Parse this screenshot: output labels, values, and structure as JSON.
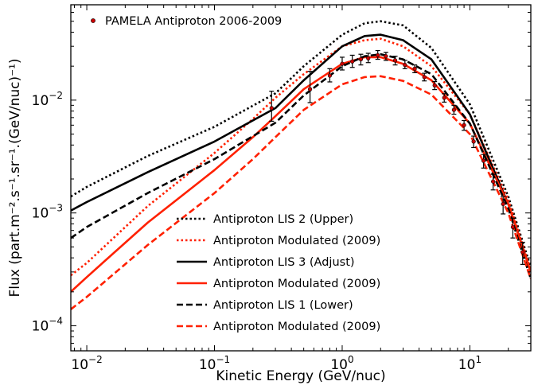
{
  "chart_data": {
    "type": "line",
    "xscale": "log",
    "yscale": "log",
    "xlabel": "Kinetic Energy (GeV/nuc)",
    "ylabel": "Flux (part.m⁻².s⁻¹.sr⁻¹.(GeV/nuc)⁻¹)",
    "xlim": [
      0.0075,
      30
    ],
    "ylim": [
      6e-05,
      0.07
    ],
    "x_ticks": [
      {
        "value": 0.01,
        "base": "10",
        "exp": "-2"
      },
      {
        "value": 0.1,
        "base": "10",
        "exp": "-1"
      },
      {
        "value": 1,
        "base": "10",
        "exp": "0"
      },
      {
        "value": 10,
        "base": "10",
        "exp": "1"
      }
    ],
    "y_ticks": [
      {
        "value": 0.0001,
        "base": "10",
        "exp": "-4"
      },
      {
        "value": 0.001,
        "base": "10",
        "exp": "-3"
      },
      {
        "value": 0.01,
        "base": "10",
        "exp": "-2"
      }
    ],
    "legend_position": "lower-center",
    "series": [
      {
        "name": "Antiproton LIS 2 (Upper)",
        "color": "#000000",
        "style": "dotted",
        "points": [
          [
            0.0075,
            0.0014
          ],
          [
            0.01,
            0.0017
          ],
          [
            0.03,
            0.0032
          ],
          [
            0.1,
            0.0058
          ],
          [
            0.3,
            0.0115
          ],
          [
            0.5,
            0.02
          ],
          [
            1,
            0.038
          ],
          [
            1.5,
            0.048
          ],
          [
            2,
            0.05
          ],
          [
            3,
            0.046
          ],
          [
            5,
            0.029
          ],
          [
            10,
            0.0092
          ],
          [
            20,
            0.0014
          ],
          [
            30,
            0.00033
          ]
        ]
      },
      {
        "name": "Antiproton Modulated (2009)",
        "color": "#ff2000",
        "style": "dotted",
        "points": [
          [
            0.0075,
            0.00028
          ],
          [
            0.01,
            0.00036
          ],
          [
            0.03,
            0.00115
          ],
          [
            0.1,
            0.0034
          ],
          [
            0.2,
            0.0068
          ],
          [
            0.3,
            0.0105
          ],
          [
            0.5,
            0.017
          ],
          [
            1,
            0.03
          ],
          [
            1.5,
            0.034
          ],
          [
            2,
            0.035
          ],
          [
            3,
            0.03
          ],
          [
            5,
            0.02
          ],
          [
            10,
            0.0075
          ],
          [
            20,
            0.0013
          ],
          [
            30,
            0.00031
          ]
        ]
      },
      {
        "name": "Antiproton LIS 3 (Adjust)",
        "color": "#000000",
        "style": "solid",
        "points": [
          [
            0.0075,
            0.00105
          ],
          [
            0.01,
            0.00125
          ],
          [
            0.03,
            0.0023
          ],
          [
            0.1,
            0.0043
          ],
          [
            0.3,
            0.0085
          ],
          [
            0.5,
            0.015
          ],
          [
            1,
            0.03
          ],
          [
            1.5,
            0.037
          ],
          [
            2,
            0.038
          ],
          [
            3,
            0.034
          ],
          [
            5,
            0.023
          ],
          [
            10,
            0.0075
          ],
          [
            20,
            0.0012
          ],
          [
            30,
            0.0003
          ]
        ]
      },
      {
        "name": "Antiproton Modulated (2009)",
        "color": "#ff2000",
        "style": "solid",
        "points": [
          [
            0.0075,
            0.0002
          ],
          [
            0.01,
            0.00027
          ],
          [
            0.03,
            0.00082
          ],
          [
            0.1,
            0.0024
          ],
          [
            0.2,
            0.0047
          ],
          [
            0.3,
            0.0072
          ],
          [
            0.5,
            0.0125
          ],
          [
            1,
            0.021
          ],
          [
            1.5,
            0.024
          ],
          [
            2,
            0.024
          ],
          [
            3,
            0.021
          ],
          [
            5,
            0.015
          ],
          [
            10,
            0.0062
          ],
          [
            20,
            0.0012
          ],
          [
            30,
            0.0003
          ]
        ]
      },
      {
        "name": "Antiproton LIS 1 (Lower)",
        "color": "#000000",
        "style": "dashed",
        "points": [
          [
            0.0075,
            0.0006
          ],
          [
            0.01,
            0.00075
          ],
          [
            0.03,
            0.0015
          ],
          [
            0.1,
            0.003
          ],
          [
            0.3,
            0.0063
          ],
          [
            0.5,
            0.011
          ],
          [
            1,
            0.02
          ],
          [
            1.5,
            0.0245
          ],
          [
            2,
            0.0255
          ],
          [
            3,
            0.023
          ],
          [
            5,
            0.017
          ],
          [
            10,
            0.0062
          ],
          [
            20,
            0.0011
          ],
          [
            30,
            0.00026
          ]
        ]
      },
      {
        "name": "Antiproton Modulated (2009)",
        "color": "#ff2000",
        "style": "dashed",
        "points": [
          [
            0.0075,
            0.00014
          ],
          [
            0.01,
            0.00018
          ],
          [
            0.03,
            0.00052
          ],
          [
            0.1,
            0.0015
          ],
          [
            0.2,
            0.003
          ],
          [
            0.3,
            0.0047
          ],
          [
            0.5,
            0.0082
          ],
          [
            1,
            0.0138
          ],
          [
            1.5,
            0.016
          ],
          [
            2,
            0.0163
          ],
          [
            3,
            0.0148
          ],
          [
            5,
            0.0112
          ],
          [
            10,
            0.005
          ],
          [
            20,
            0.001
          ],
          [
            30,
            0.00026
          ]
        ]
      }
    ],
    "data_points": {
      "name": "PAMELA Antiproton 2006-2009",
      "color": "#cc0000",
      "points": [
        {
          "x": 0.28,
          "y": 0.0085,
          "lo": 0.0065,
          "hi": 0.012
        },
        {
          "x": 0.56,
          "y": 0.0125,
          "lo": 0.0095,
          "hi": 0.018
        },
        {
          "x": 0.8,
          "y": 0.0165,
          "lo": 0.0145,
          "hi": 0.019
        },
        {
          "x": 1.0,
          "y": 0.021,
          "lo": 0.0185,
          "hi": 0.024
        },
        {
          "x": 1.2,
          "y": 0.022,
          "lo": 0.0195,
          "hi": 0.025
        },
        {
          "x": 1.4,
          "y": 0.023,
          "lo": 0.0205,
          "hi": 0.0255
        },
        {
          "x": 1.6,
          "y": 0.0235,
          "lo": 0.0215,
          "hi": 0.026
        },
        {
          "x": 1.9,
          "y": 0.025,
          "lo": 0.023,
          "hi": 0.0275
        },
        {
          "x": 2.2,
          "y": 0.0245,
          "lo": 0.0225,
          "hi": 0.0265
        },
        {
          "x": 2.6,
          "y": 0.0225,
          "lo": 0.0205,
          "hi": 0.0245
        },
        {
          "x": 3.1,
          "y": 0.0205,
          "lo": 0.019,
          "hi": 0.0225
        },
        {
          "x": 3.7,
          "y": 0.019,
          "lo": 0.0175,
          "hi": 0.0205
        },
        {
          "x": 4.4,
          "y": 0.016,
          "lo": 0.0148,
          "hi": 0.0173
        },
        {
          "x": 5.3,
          "y": 0.0135,
          "lo": 0.0124,
          "hi": 0.0146
        },
        {
          "x": 6.3,
          "y": 0.0105,
          "lo": 0.0096,
          "hi": 0.0114
        },
        {
          "x": 7.5,
          "y": 0.0082,
          "lo": 0.0075,
          "hi": 0.009
        },
        {
          "x": 9,
          "y": 0.006,
          "lo": 0.0054,
          "hi": 0.0066
        },
        {
          "x": 10.7,
          "y": 0.0043,
          "lo": 0.0038,
          "hi": 0.0048
        },
        {
          "x": 12.8,
          "y": 0.0029,
          "lo": 0.0025,
          "hi": 0.0033
        },
        {
          "x": 15.2,
          "y": 0.0019,
          "lo": 0.0016,
          "hi": 0.0022
        },
        {
          "x": 18.2,
          "y": 0.0012,
          "lo": 0.00098,
          "hi": 0.0014
        },
        {
          "x": 21.7,
          "y": 0.00075,
          "lo": 0.0006,
          "hi": 0.0009
        },
        {
          "x": 25.9,
          "y": 0.00045,
          "lo": 0.00035,
          "hi": 0.00055
        }
      ]
    }
  }
}
